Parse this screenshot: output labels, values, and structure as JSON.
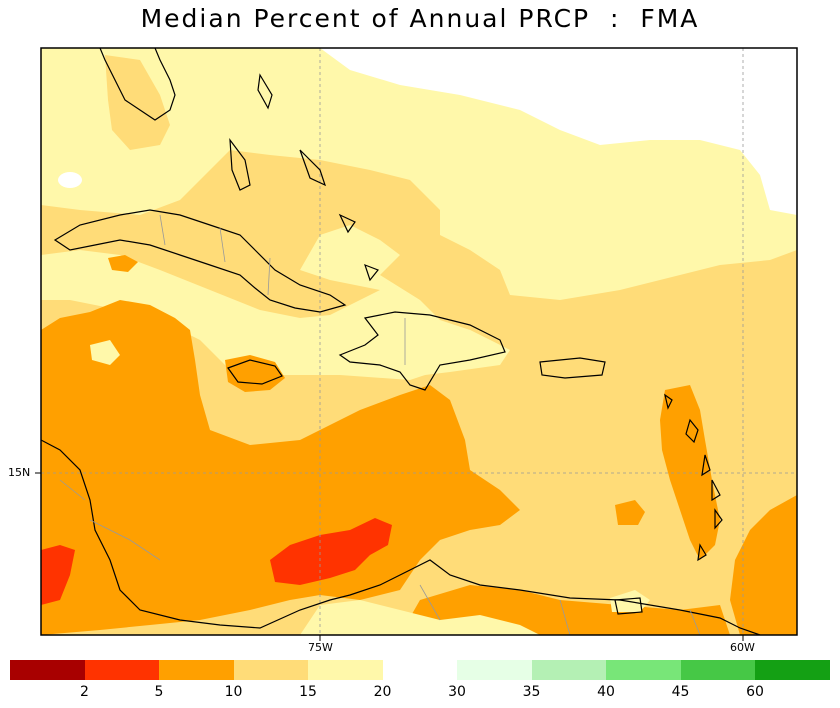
{
  "title": "Median Percent of Annual PRCP  :  FMA",
  "axes": {
    "x_ticks": [
      "75W",
      "60W"
    ],
    "y_ticks": [
      "15N"
    ]
  },
  "legend": {
    "swatches": [
      {
        "color": "#a80000"
      },
      {
        "color": "#ff3300"
      },
      {
        "color": "#ffa000"
      },
      {
        "color": "#ffdc78"
      },
      {
        "color": "#fff8aa"
      },
      {
        "color": "#ffffff"
      },
      {
        "color": "#e6ffe6"
      },
      {
        "color": "#b4f0b4"
      },
      {
        "color": "#78e678"
      },
      {
        "color": "#46c846"
      },
      {
        "color": "#14a014"
      }
    ],
    "ticks": [
      "2",
      "5",
      "10",
      "15",
      "20",
      "30",
      "35",
      "40",
      "45",
      "60"
    ]
  },
  "palette": {
    "red": "#ff3300",
    "orange": "#ffa000",
    "light_orange": "#ffdc78",
    "pale_yellow": "#fff8aa",
    "land_outline": "#000000",
    "borders": "#999999"
  }
}
